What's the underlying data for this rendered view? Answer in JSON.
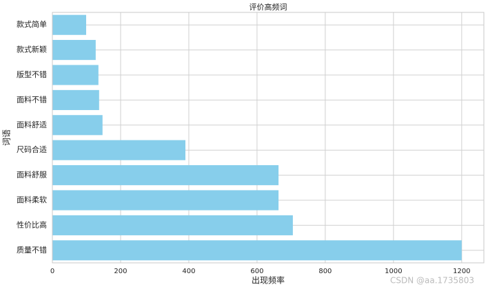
{
  "chart_data": {
    "type": "barh",
    "title": "评价高频词",
    "xlabel": "出现频率",
    "ylabel": "词语",
    "categories": [
      "款式简单",
      "款式新颖",
      "版型不错",
      "面料不错",
      "面料舒适",
      "尺码合适",
      "面料舒服",
      "面料柔软",
      "性价比高",
      "质量不错"
    ],
    "values": [
      99,
      127,
      135,
      137,
      147,
      390,
      663,
      663,
      705,
      1200
    ],
    "color": "#87ceeb",
    "xlim": [
      0,
      1265
    ],
    "xticks": [
      0,
      200,
      400,
      600,
      800,
      1000,
      1200
    ],
    "grid": true,
    "watermark": "CSDN @aa.1735803"
  }
}
